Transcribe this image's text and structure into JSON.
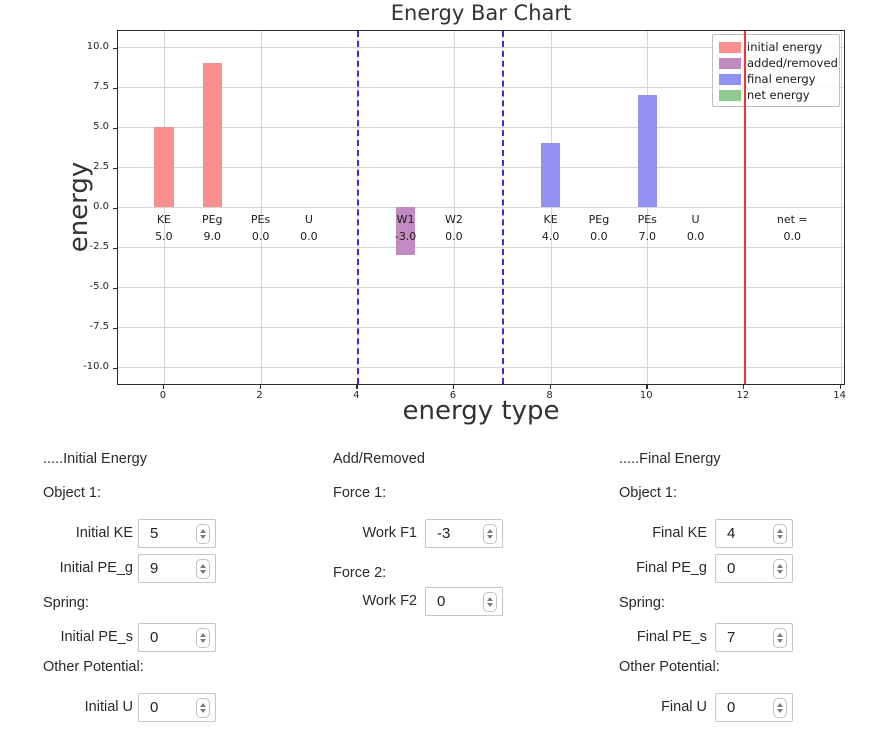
{
  "chart_data": {
    "type": "bar",
    "title": "Energy Bar Chart",
    "xlabel": "energy type",
    "ylabel": "energy",
    "xlim": [
      -0.95,
      14.05
    ],
    "ylim": [
      -11,
      11
    ],
    "grid": true,
    "legend_position": "upper right",
    "bar_width": 0.4,
    "xticks": [
      {
        "v": 0,
        "label": "0"
      },
      {
        "v": 2,
        "label": "2"
      },
      {
        "v": 4,
        "label": "4"
      },
      {
        "v": 6,
        "label": "6"
      },
      {
        "v": 8,
        "label": "8"
      },
      {
        "v": 10,
        "label": "10"
      },
      {
        "v": 12,
        "label": "12"
      },
      {
        "v": 14,
        "label": "14"
      }
    ],
    "yticks": [
      {
        "v": 10.0,
        "label": "10.0"
      },
      {
        "v": 7.5,
        "label": "7.5"
      },
      {
        "v": 5.0,
        "label": "5.0"
      },
      {
        "v": 2.5,
        "label": "2.5"
      },
      {
        "v": 0.0,
        "label": "0.0"
      },
      {
        "v": -2.5,
        "label": "-2.5"
      },
      {
        "v": -5.0,
        "label": "-5.0"
      },
      {
        "v": -7.5,
        "label": "-7.5"
      },
      {
        "v": -10.0,
        "label": "-10.0"
      }
    ],
    "bars": [
      {
        "x": 0,
        "name": "KE",
        "value": 5.0,
        "value_label": "5.0",
        "series": "initial energy",
        "color": "#fb8e8e"
      },
      {
        "x": 1,
        "name": "PEg",
        "value": 9.0,
        "value_label": "9.0",
        "series": "initial energy",
        "color": "#fb8e8e"
      },
      {
        "x": 2,
        "name": "PEs",
        "value": 0.0,
        "value_label": "0.0",
        "series": "initial energy",
        "color": "#fb8e8e"
      },
      {
        "x": 3,
        "name": "U",
        "value": 0.0,
        "value_label": "0.0",
        "series": "initial energy",
        "color": "#fb8e8e"
      },
      {
        "x": 5,
        "name": "W1",
        "value": -3.0,
        "value_label": "-3.0",
        "series": "added/removed",
        "color": "#c28ac2"
      },
      {
        "x": 6,
        "name": "W2",
        "value": 0.0,
        "value_label": "0.0",
        "series": "added/removed",
        "color": "#c28ac2"
      },
      {
        "x": 8,
        "name": "KE",
        "value": 4.0,
        "value_label": "4.0",
        "series": "final energy",
        "color": "#9191f6"
      },
      {
        "x": 9,
        "name": "PEg",
        "value": 0.0,
        "value_label": "0.0",
        "series": "final energy",
        "color": "#9191f6"
      },
      {
        "x": 10,
        "name": "PEs",
        "value": 7.0,
        "value_label": "7.0",
        "series": "final energy",
        "color": "#9191f6"
      },
      {
        "x": 11,
        "name": "U",
        "value": 0.0,
        "value_label": "0.0",
        "series": "final energy",
        "color": "#9191f6"
      },
      {
        "x": 13,
        "name": "net =",
        "value": 0.0,
        "value_label": "0.0",
        "series": "net energy",
        "color": "#8fca8f"
      }
    ],
    "vlines": [
      {
        "x": 4,
        "style": "dashed",
        "color": "#3333cc"
      },
      {
        "x": 7,
        "style": "dashed",
        "color": "#3333cc"
      },
      {
        "x": 12,
        "style": "solid",
        "color": "#f03333"
      }
    ],
    "legend": [
      {
        "label": "initial energy",
        "color": "#fb8e8e"
      },
      {
        "label": "added/removed",
        "color": "#c28ac2"
      },
      {
        "label": "final energy",
        "color": "#9191f6"
      },
      {
        "label": "net energy",
        "color": "#8fca8f"
      }
    ]
  },
  "form": {
    "columns": [
      {
        "header": ".....Initial Energy",
        "groups": [
          {
            "label": "Object 1:",
            "fields": [
              {
                "label": "Initial KE",
                "value": "5"
              },
              {
                "label": "Initial PE_g",
                "value": "9"
              }
            ]
          },
          {
            "label": "Spring:",
            "fields": [
              {
                "label": "Initial PE_s",
                "value": "0"
              }
            ]
          },
          {
            "label": "Other Potential:",
            "fields": [
              {
                "label": "Initial U",
                "value": "0"
              }
            ]
          }
        ]
      },
      {
        "header": "Add/Removed",
        "groups": [
          {
            "label": "Force 1:",
            "fields": [
              {
                "label": "Work F1",
                "value": "-3"
              }
            ]
          },
          {
            "label": "Force 2:",
            "fields": [
              {
                "label": "Work F2",
                "value": "0"
              }
            ]
          }
        ]
      },
      {
        "header": ".....Final Energy",
        "groups": [
          {
            "label": "Object 1:",
            "fields": [
              {
                "label": "Final KE",
                "value": "4"
              },
              {
                "label": "Final PE_g",
                "value": "0"
              }
            ]
          },
          {
            "label": "Spring:",
            "fields": [
              {
                "label": "Final PE_s",
                "value": "7"
              }
            ]
          },
          {
            "label": "Other Potential:",
            "fields": [
              {
                "label": "Final U",
                "value": "0"
              }
            ]
          }
        ]
      }
    ]
  }
}
